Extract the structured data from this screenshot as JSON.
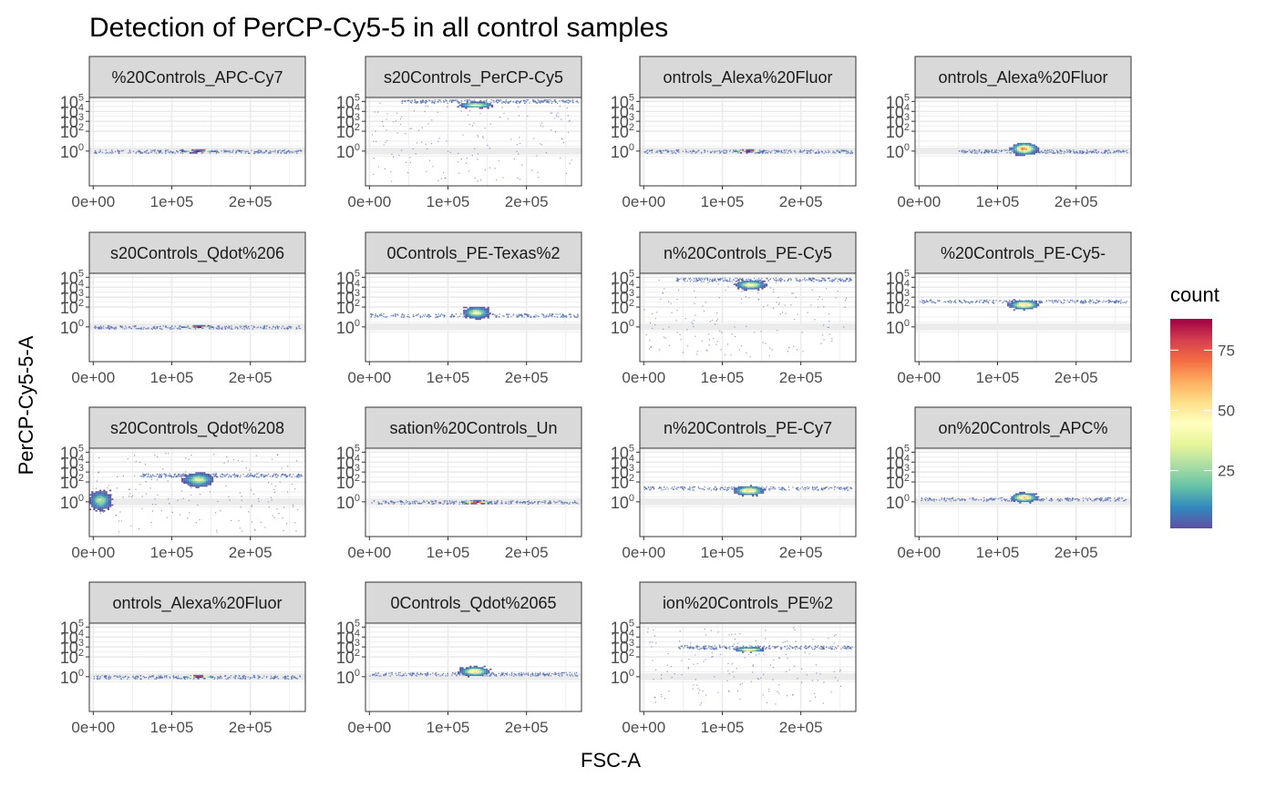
{
  "chart_data": {
    "type": "faceted-2d-histogram",
    "title": "Detection of PerCP-Cy5-5 in all control samples",
    "xlabel": "FSC-A",
    "ylabel": "PerCP-Cy5-5-A",
    "x_ticks": [
      "0e+00",
      "1e+05",
      "2e+05"
    ],
    "x_tick_values": [
      0,
      100000,
      200000
    ],
    "xlim": [
      -5000,
      270000
    ],
    "y_ticks": [
      {
        "base": "10",
        "exp": "5",
        "value": 5
      },
      {
        "base": "10",
        "exp": "4",
        "value": 4
      },
      {
        "base": "10",
        "exp": "3",
        "value": 3
      },
      {
        "base": "10",
        "exp": "2",
        "value": 2
      },
      {
        "base": "10",
        "exp": "0",
        "value": 0
      }
    ],
    "ylim_log10": [
      -3.5,
      5.4
    ],
    "fill_legend": {
      "title": "count",
      "labels": [
        "75",
        "50",
        "25"
      ],
      "label_values": [
        75,
        50,
        25
      ],
      "range": [
        1,
        88
      ],
      "palette": "Spectral (reversed)",
      "colors": [
        "#5E4FA2",
        "#3288BD",
        "#66C2A5",
        "#ABDDA4",
        "#E6F598",
        "#FFFFBF",
        "#FEE08B",
        "#FDAE61",
        "#F46D43",
        "#D53E4F",
        "#9E0142"
      ]
    },
    "facets": [
      {
        "label": "%20Controls_APC-Cy7",
        "clusters": [
          {
            "x": 133000,
            "y": 0.05,
            "sx": 8000,
            "sy": 0.06,
            "max": 88
          }
        ],
        "band": {
          "y": 0.0,
          "x0": 0,
          "x1": 265000
        }
      },
      {
        "label": "s20Controls_PerCP-Cy5",
        "clusters": [
          {
            "x": 135000,
            "y": 4.7,
            "sx": 9000,
            "sy": 0.12,
            "max": 45
          }
        ],
        "band": {
          "y": 5.05,
          "x0": 40000,
          "x1": 265000
        },
        "scatter": true
      },
      {
        "label": "ontrols_Alexa%20Fluor",
        "clusters": [
          {
            "x": 133000,
            "y": 0.05,
            "sx": 8000,
            "sy": 0.06,
            "max": 85
          }
        ],
        "band": {
          "y": 0.0,
          "x0": 0,
          "x1": 265000
        }
      },
      {
        "label": "ontrols_Alexa%20Fluor",
        "clusters": [
          {
            "x": 133000,
            "y": 0.3,
            "sx": 7000,
            "sy": 0.25,
            "max": 70
          }
        ],
        "band": {
          "y": 0.0,
          "x0": 50000,
          "x1": 265000
        }
      },
      {
        "label": "s20Controls_Qdot%206",
        "clusters": [
          {
            "x": 133000,
            "y": 0.05,
            "sx": 8000,
            "sy": 0.06,
            "max": 88
          }
        ],
        "band": {
          "y": 0.0,
          "x0": 0,
          "x1": 265000
        }
      },
      {
        "label": "0Controls_PE-Texas%2",
        "clusters": [
          {
            "x": 135000,
            "y": 1.5,
            "sx": 7000,
            "sy": 0.25,
            "max": 40
          }
        ],
        "band": {
          "y": 1.2,
          "x0": 0,
          "x1": 265000
        }
      },
      {
        "label": "n%20Controls_PE-Cy5",
        "clusters": [
          {
            "x": 135000,
            "y": 4.3,
            "sx": 8000,
            "sy": 0.2,
            "max": 45
          }
        ],
        "band": {
          "y": 4.8,
          "x0": 40000,
          "x1": 265000
        },
        "scatter": true
      },
      {
        "label": "%20Controls_PE-Cy5-",
        "clusters": [
          {
            "x": 133000,
            "y": 2.3,
            "sx": 8000,
            "sy": 0.2,
            "max": 55
          }
        ],
        "band": {
          "y": 2.6,
          "x0": 0,
          "x1": 265000
        }
      },
      {
        "label": "s20Controls_Qdot%208",
        "clusters": [
          {
            "x": 133000,
            "y": 2.3,
            "sx": 8000,
            "sy": 0.3,
            "max": 35
          },
          {
            "x": 8000,
            "y": 0.2,
            "sx": 6000,
            "sy": 0.4,
            "max": 30
          }
        ],
        "band": {
          "y": 2.7,
          "x0": 60000,
          "x1": 265000
        },
        "scatter": true
      },
      {
        "label": "sation%20Controls_Un",
        "clusters": [
          {
            "x": 135000,
            "y": 0.05,
            "sx": 8000,
            "sy": 0.06,
            "max": 88
          }
        ],
        "band": {
          "y": 0.0,
          "x0": 0,
          "x1": 265000
        }
      },
      {
        "label": "n%20Controls_PE-Cy7",
        "clusters": [
          {
            "x": 133000,
            "y": 1.2,
            "sx": 8000,
            "sy": 0.2,
            "max": 55
          }
        ],
        "band": {
          "y": 1.4,
          "x0": 0,
          "x1": 265000
        }
      },
      {
        "label": "on%20Controls_APC%",
        "clusters": [
          {
            "x": 133000,
            "y": 0.5,
            "sx": 7000,
            "sy": 0.2,
            "max": 60
          }
        ],
        "band": {
          "y": 0.3,
          "x0": 0,
          "x1": 265000
        }
      },
      {
        "label": "ontrols_Alexa%20Fluor",
        "clusters": [
          {
            "x": 133000,
            "y": 0.05,
            "sx": 8000,
            "sy": 0.06,
            "max": 85
          }
        ],
        "band": {
          "y": 0.0,
          "x0": 0,
          "x1": 265000
        }
      },
      {
        "label": "0Controls_Qdot%2065",
        "clusters": [
          {
            "x": 133000,
            "y": 0.6,
            "sx": 8000,
            "sy": 0.2,
            "max": 55
          }
        ],
        "band": {
          "y": 0.3,
          "x0": 0,
          "x1": 265000
        }
      },
      {
        "label": "ion%20Controls_PE%2",
        "clusters": [
          {
            "x": 133000,
            "y": 2.8,
            "sx": 8000,
            "sy": 0.1,
            "max": 60
          }
        ],
        "band": {
          "y": 3.0,
          "x0": 40000,
          "x1": 265000
        },
        "scatter": true
      }
    ]
  }
}
